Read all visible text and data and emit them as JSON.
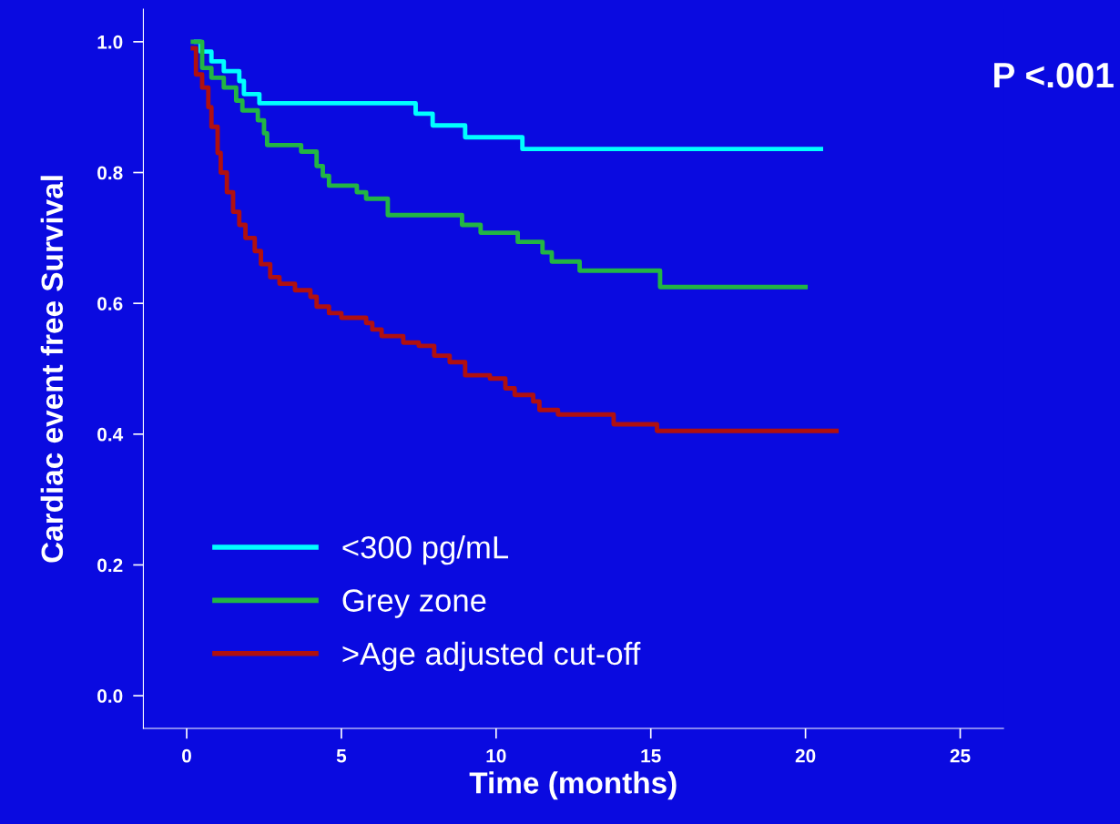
{
  "chart_data": {
    "type": "step",
    "xlabel": "Time (months)",
    "ylabel": "Cardiac event free Survival",
    "xlim": [
      -1.4,
      26.4
    ],
    "ylim": [
      -0.05,
      1.05
    ],
    "xticks": [
      0,
      5,
      10,
      15,
      20,
      25
    ],
    "yticks": [
      {
        "value": 0,
        "label": "0.0"
      },
      {
        "value": 0.2,
        "label": "0.2"
      },
      {
        "value": 0.4,
        "label": "0.4"
      },
      {
        "value": 0.6,
        "label": "0.6"
      },
      {
        "value": 0.8,
        "label": "0.8"
      },
      {
        "value": 1,
        "label": "1.0"
      }
    ],
    "legend": "bottom left",
    "grid": false,
    "annotations": [
      "P <.001"
    ],
    "series": [
      {
        "name": "<300 pg/mL",
        "color": "#00ffff",
        "x": [
          0.3,
          0.45,
          0.8,
          1.2,
          1.7,
          1.85,
          2.35,
          7.4,
          7.95,
          9.0,
          10.85,
          20.5
        ],
        "values": [
          1.0,
          0.985,
          0.97,
          0.955,
          0.94,
          0.92,
          0.906,
          0.89,
          0.872,
          0.854,
          0.836,
          0.836
        ]
      },
      {
        "name": "Grey zone",
        "color": "#22b544",
        "x": [
          0.2,
          0.5,
          0.8,
          1.2,
          1.6,
          1.8,
          2.3,
          2.5,
          2.6,
          3.7,
          4.2,
          4.4,
          4.6,
          5.5,
          5.8,
          6.5,
          8.9,
          9.5,
          10.7,
          11.5,
          11.8,
          12.7,
          15.3,
          20.0
        ],
        "values": [
          1.0,
          0.96,
          0.945,
          0.93,
          0.91,
          0.895,
          0.88,
          0.86,
          0.842,
          0.832,
          0.81,
          0.795,
          0.78,
          0.77,
          0.76,
          0.735,
          0.72,
          0.708,
          0.694,
          0.678,
          0.664,
          0.65,
          0.625,
          0.625
        ]
      },
      {
        "name": ">Age adjusted cut-off",
        "color": "#b01010",
        "x": [
          0.2,
          0.3,
          0.5,
          0.7,
          0.8,
          1.0,
          1.1,
          1.3,
          1.5,
          1.7,
          1.9,
          2.2,
          2.4,
          2.7,
          3.0,
          3.5,
          4.0,
          4.2,
          4.6,
          5.0,
          5.8,
          6.0,
          6.3,
          7.0,
          7.5,
          8.0,
          8.5,
          9.0,
          9.8,
          10.3,
          10.6,
          11.2,
          11.4,
          12.0,
          13.8,
          15.2,
          21.0
        ],
        "values": [
          0.99,
          0.95,
          0.93,
          0.9,
          0.87,
          0.83,
          0.8,
          0.77,
          0.74,
          0.72,
          0.7,
          0.68,
          0.66,
          0.64,
          0.63,
          0.62,
          0.61,
          0.595,
          0.585,
          0.578,
          0.57,
          0.56,
          0.55,
          0.54,
          0.535,
          0.52,
          0.51,
          0.49,
          0.485,
          0.47,
          0.46,
          0.45,
          0.437,
          0.43,
          0.415,
          0.405,
          0.405
        ]
      }
    ]
  }
}
